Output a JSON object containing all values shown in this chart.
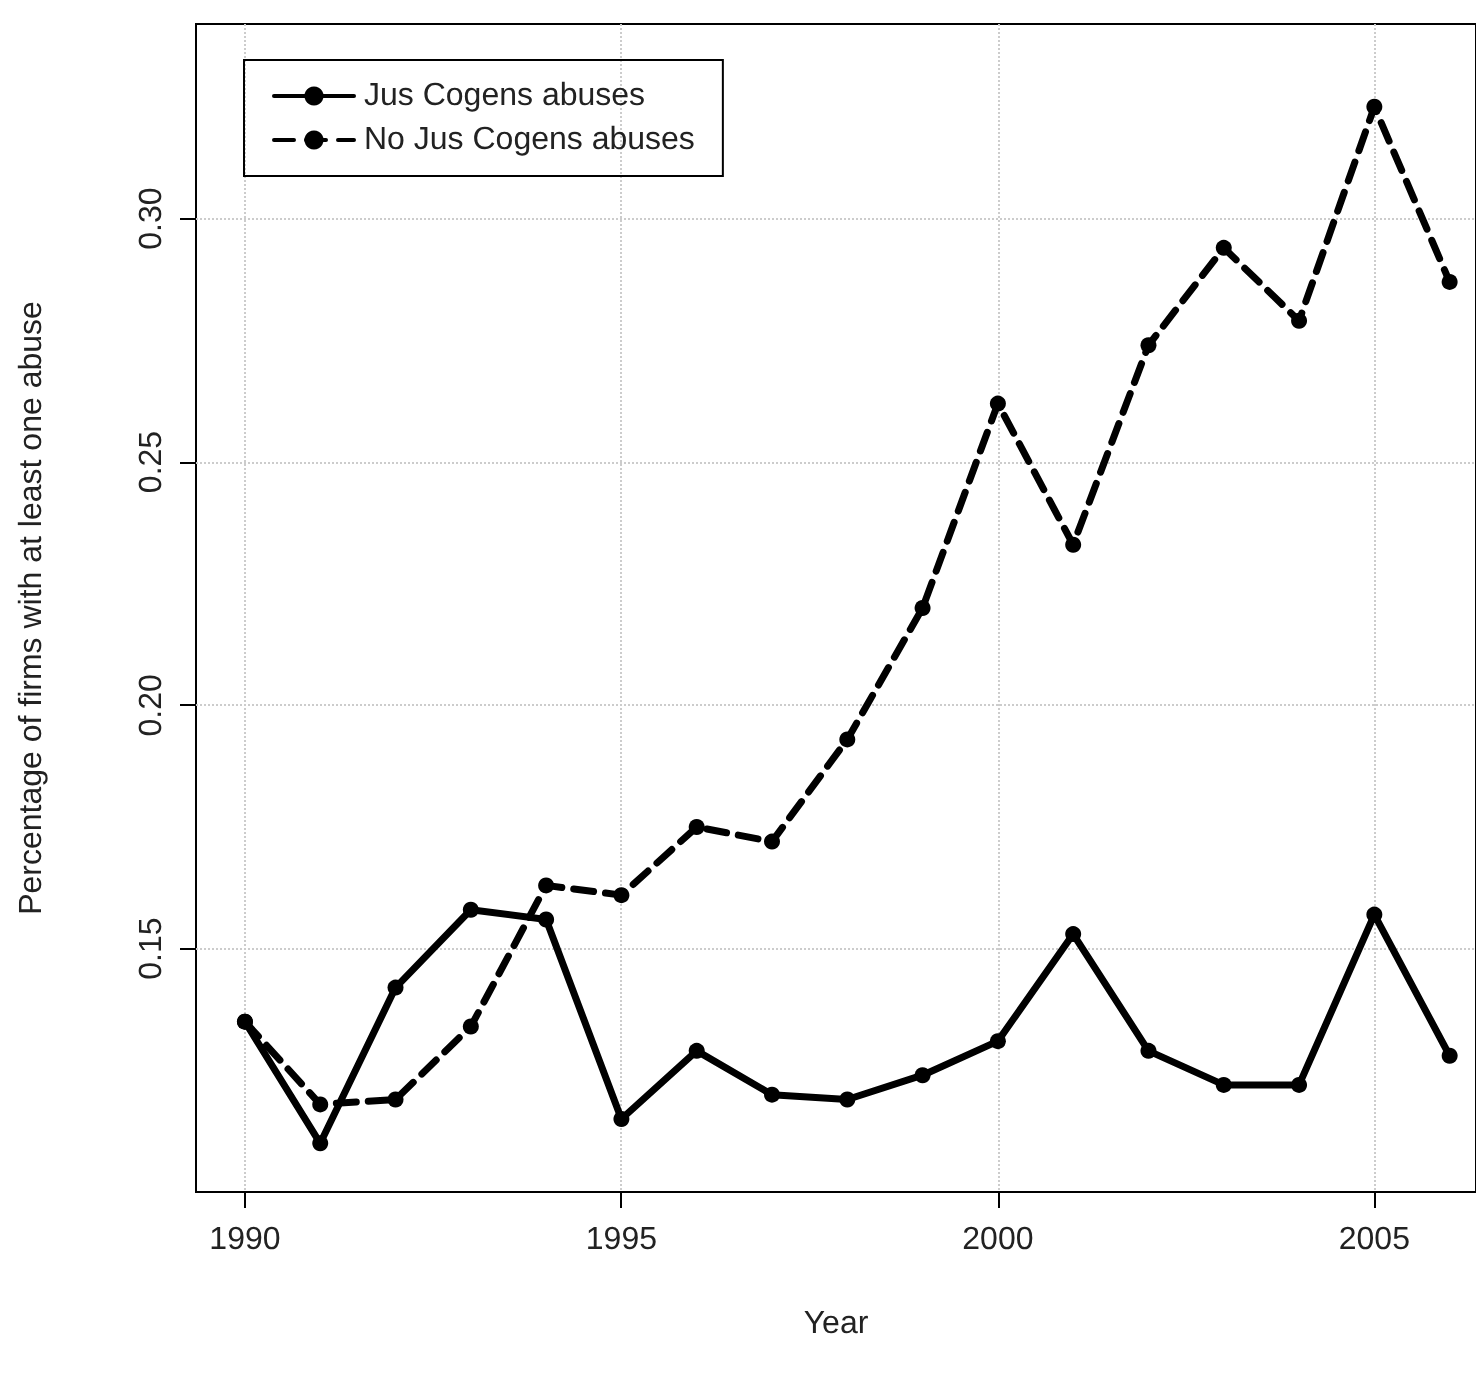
{
  "chart_data": {
    "type": "line",
    "xlabel": "Year",
    "ylabel": "Percentage of firms with at least one abuse",
    "x": [
      1990,
      1991,
      1992,
      1993,
      1994,
      1995,
      1996,
      1997,
      1998,
      1999,
      2000,
      2001,
      2002,
      2003,
      2004,
      2005,
      2006
    ],
    "series": [
      {
        "name": "Jus Cogens abuses",
        "color": "#000000",
        "line_style": "solid",
        "values": [
          0.135,
          0.11,
          0.142,
          0.158,
          0.156,
          0.115,
          0.129,
          0.12,
          0.119,
          0.124,
          0.131,
          0.153,
          0.129,
          0.122,
          0.122,
          0.157,
          0.128
        ]
      },
      {
        "name": "No Jus Cogens abuses",
        "color": "#000000",
        "line_style": "dashed",
        "values": [
          0.135,
          0.118,
          0.119,
          0.134,
          0.163,
          0.161,
          0.175,
          0.172,
          0.193,
          0.22,
          0.262,
          0.233,
          0.274,
          0.294,
          0.279,
          0.323,
          0.287
        ]
      }
    ],
    "xlim": [
      1989.35,
      2006.35
    ],
    "xticks": [
      1990,
      1995,
      2000,
      2005
    ],
    "ylim": [
      0.1,
      0.34
    ],
    "yticks": [
      {
        "value": 0.15,
        "label": "0.15"
      },
      {
        "value": 0.2,
        "label": "0.20"
      },
      {
        "value": 0.25,
        "label": "0.25"
      },
      {
        "value": 0.3,
        "label": "0.30"
      }
    ],
    "grid": true,
    "legend": "top left",
    "marker": "circle"
  }
}
